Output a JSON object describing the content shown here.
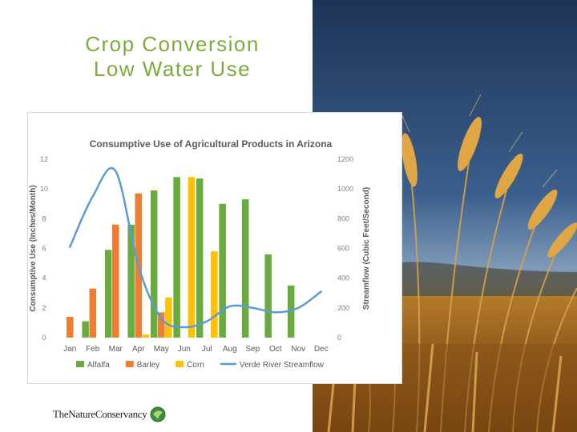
{
  "slide": {
    "title_line1": "Crop Conversion",
    "title_line2": "Low Water Use",
    "logo_text": "TheNatureConservancy"
  },
  "colors": {
    "title": "#7eaa3c",
    "alfalfa": "#6aab3f",
    "barley": "#ef7d31",
    "corn": "#ffc000",
    "streamflow": "#5b9bd5",
    "sky": "#27456c",
    "wheat": "#c98a2e"
  },
  "chart_data": {
    "type": "bar",
    "title": "Consumptive Use of Agricultural Products in Arizona",
    "ylabel": "Consumptive Use (Inches/Month)",
    "y2label": "Streamflow (Cubic Feet/Second)",
    "categories": [
      "Jan",
      "Feb",
      "Mar",
      "Apr",
      "May",
      "Jun",
      "Jul",
      "Aug",
      "Sep",
      "Oct",
      "Nov",
      "Dec"
    ],
    "ylim": [
      0,
      12
    ],
    "y_ticks": [
      "0",
      "2",
      "4",
      "6",
      "8",
      "10",
      "12"
    ],
    "y2lim": [
      0,
      1200
    ],
    "y2_ticks": [
      "0",
      "200",
      "400",
      "600",
      "800",
      "1000",
      "1200"
    ],
    "grid": false,
    "legend_position": "bottom",
    "series": [
      {
        "name": "Alfalfa",
        "kind": "bar",
        "color": "#6aab3f",
        "values": [
          0,
          1.1,
          5.9,
          7.6,
          9.9,
          10.8,
          10.7,
          9.0,
          9.3,
          5.6,
          3.5,
          0
        ]
      },
      {
        "name": "Barley",
        "kind": "bar",
        "color": "#ef7d31",
        "values": [
          1.4,
          3.3,
          7.6,
          9.7,
          1.7,
          0,
          0,
          0,
          0,
          0,
          0,
          0
        ]
      },
      {
        "name": "Corn",
        "kind": "bar",
        "color": "#ffc000",
        "values": [
          0,
          0,
          0,
          0.2,
          2.7,
          10.8,
          5.8,
          0,
          0,
          0,
          0,
          0
        ]
      },
      {
        "name": "Verde River Streamflow",
        "kind": "line",
        "axis": "right",
        "color": "#5b9bd5",
        "values": [
          610,
          950,
          1120,
          480,
          130,
          70,
          110,
          210,
          200,
          170,
          200,
          310
        ]
      }
    ]
  }
}
